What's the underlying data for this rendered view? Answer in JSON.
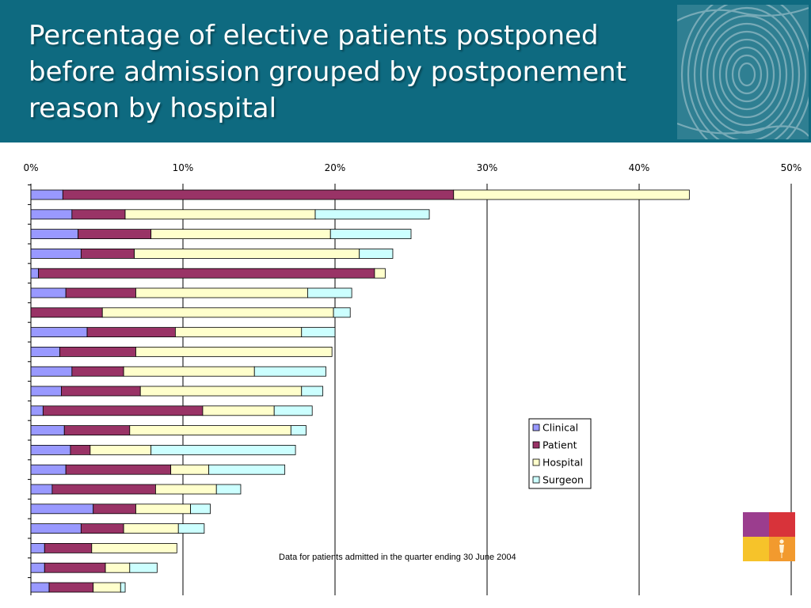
{
  "slide": {
    "title": "Percentage of elective patients postponed before admission grouped by postponement reason by hospital",
    "footnote": "Data for patients admitted in the quarter ending 30 June 2004"
  },
  "decor": {
    "header_icon": "fingerprint-icon",
    "logo_icon": "four-square-logo-icon",
    "colors": {
      "header_bg": "#0e6a80",
      "logo_purple": "#9b3d8e",
      "logo_red": "#d8333a",
      "logo_yellow": "#f6c32a",
      "logo_orange": "#f29a2e"
    }
  },
  "chart_data": {
    "type": "bar",
    "orientation": "horizontal",
    "stacked": true,
    "title": "",
    "xlabel": "",
    "ylabel": "",
    "xlim": [
      0,
      50
    ],
    "x_unit": "%",
    "x_ticks": [
      "0%",
      "10%",
      "20%",
      "30%",
      "40%",
      "50%"
    ],
    "x_tick_values": [
      0,
      10,
      20,
      30,
      40,
      50
    ],
    "x_axis_position": "top",
    "grid": "vertical lines at 10% intervals",
    "legend": "center-right",
    "series": [
      {
        "name": "Clinical",
        "color": "#9999ff",
        "values": [
          2.1,
          2.7,
          3.1,
          3.3,
          0.5,
          2.3,
          0.0,
          3.7,
          1.9,
          2.7,
          2.0,
          0.8,
          2.2,
          2.6,
          2.3,
          1.4,
          4.1,
          3.3,
          0.9,
          0.9,
          1.2
        ]
      },
      {
        "name": "Patient",
        "color": "#993366",
        "values": [
          25.7,
          3.5,
          4.8,
          3.5,
          22.1,
          4.6,
          4.7,
          5.8,
          5.0,
          3.4,
          5.2,
          10.5,
          4.3,
          1.3,
          6.9,
          6.8,
          2.8,
          2.8,
          3.1,
          4.0,
          2.9
        ]
      },
      {
        "name": "Hospital",
        "color": "#ffffcc",
        "values": [
          15.5,
          12.5,
          11.8,
          14.8,
          0.7,
          11.3,
          15.2,
          8.3,
          12.9,
          8.6,
          10.6,
          4.7,
          10.6,
          4.0,
          2.5,
          4.0,
          3.6,
          3.6,
          5.6,
          1.6,
          1.8
        ]
      },
      {
        "name": "Surgeon",
        "color": "#ccffff",
        "values": [
          0.0,
          7.5,
          5.3,
          2.2,
          0.0,
          2.9,
          1.1,
          2.2,
          0.0,
          4.7,
          1.4,
          2.5,
          1.0,
          9.5,
          5.0,
          1.6,
          1.3,
          1.7,
          0.0,
          1.8,
          0.3
        ]
      }
    ]
  }
}
